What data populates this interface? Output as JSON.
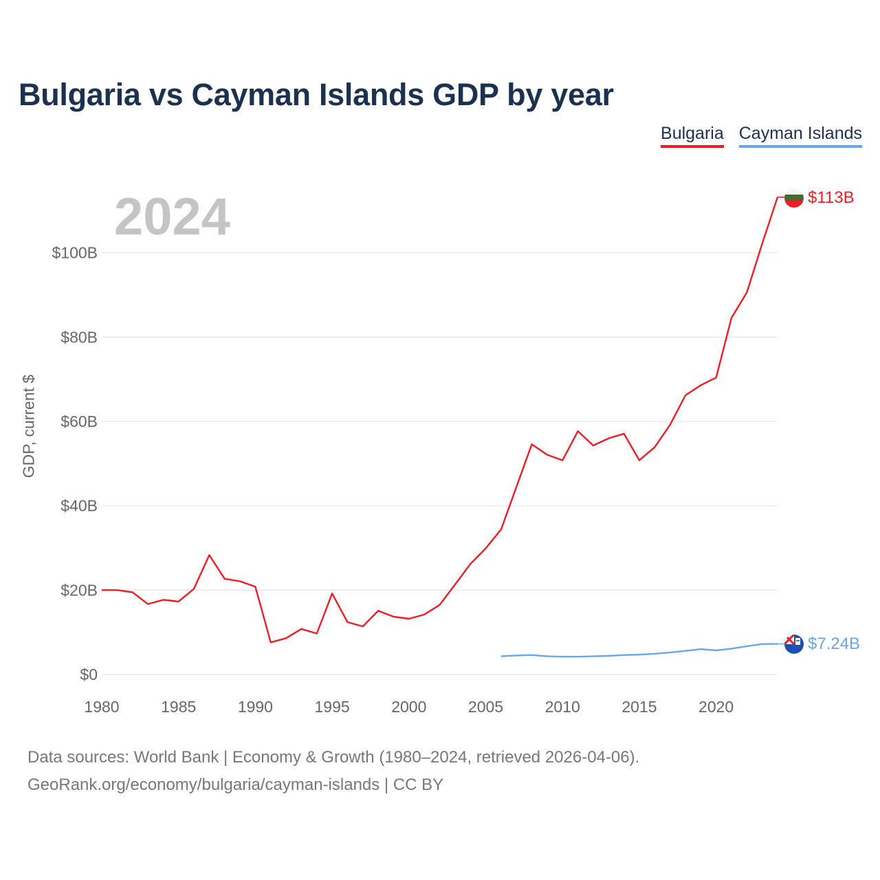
{
  "chart_data": {
    "type": "line",
    "title": "Bulgaria vs Cayman Islands GDP by year",
    "current_year": "2024",
    "ylabel": "GDP, current $",
    "xlabel": "",
    "xlim": [
      1980,
      2024
    ],
    "ylim": [
      0,
      113
    ],
    "y_ticks": [
      {
        "value": 0,
        "label": "$0"
      },
      {
        "value": 20,
        "label": "$20B"
      },
      {
        "value": 40,
        "label": "$40B"
      },
      {
        "value": 60,
        "label": "$60B"
      },
      {
        "value": 80,
        "label": "$80B"
      },
      {
        "value": 100,
        "label": "$100B"
      }
    ],
    "x_ticks": [
      1980,
      1985,
      1990,
      1995,
      2000,
      2005,
      2010,
      2015,
      2020
    ],
    "grid": true,
    "legend_position": "top-right",
    "series": [
      {
        "name": "Bulgaria",
        "color": "#ee1c25",
        "end_label": "$113B",
        "flag": "bulgaria-flag",
        "x": [
          1980,
          1981,
          1982,
          1983,
          1984,
          1985,
          1986,
          1987,
          1988,
          1989,
          1990,
          1991,
          1992,
          1993,
          1994,
          1995,
          1996,
          1997,
          1998,
          1999,
          2000,
          2001,
          2002,
          2003,
          2004,
          2005,
          2006,
          2007,
          2008,
          2009,
          2010,
          2011,
          2012,
          2013,
          2014,
          2015,
          2016,
          2017,
          2018,
          2019,
          2020,
          2021,
          2022,
          2023,
          2024
        ],
        "values": [
          20.0,
          20.0,
          19.5,
          16.7,
          17.7,
          17.3,
          20.3,
          28.3,
          22.7,
          22.1,
          20.8,
          7.6,
          8.6,
          10.8,
          9.7,
          19.2,
          12.4,
          11.4,
          15.1,
          13.7,
          13.2,
          14.2,
          16.5,
          21.3,
          26.2,
          29.9,
          34.4,
          44.5,
          54.6,
          52.1,
          50.8,
          57.7,
          54.3,
          56.0,
          57.1,
          50.8,
          53.9,
          59.2,
          66.2,
          68.6,
          70.4,
          84.6,
          90.6,
          102.2,
          113.2
        ]
      },
      {
        "name": "Cayman Islands",
        "color": "#6aa6e6",
        "end_label": "$7.24B",
        "flag": "cayman-islands-flag",
        "x": [
          2006,
          2007,
          2008,
          2009,
          2010,
          2011,
          2012,
          2013,
          2014,
          2015,
          2016,
          2017,
          2018,
          2019,
          2020,
          2021,
          2022,
          2023,
          2024
        ],
        "values": [
          4.3,
          4.5,
          4.6,
          4.3,
          4.2,
          4.2,
          4.3,
          4.4,
          4.6,
          4.7,
          4.9,
          5.2,
          5.6,
          6.0,
          5.7,
          6.1,
          6.7,
          7.2,
          7.24
        ]
      }
    ]
  },
  "footer": {
    "line1": "Data sources: World Bank | Economy & Growth (1980–2024, retrieved 2026-04-06).",
    "line2": "GeoRank.org/economy/bulgaria/cayman-islands | CC BY"
  }
}
